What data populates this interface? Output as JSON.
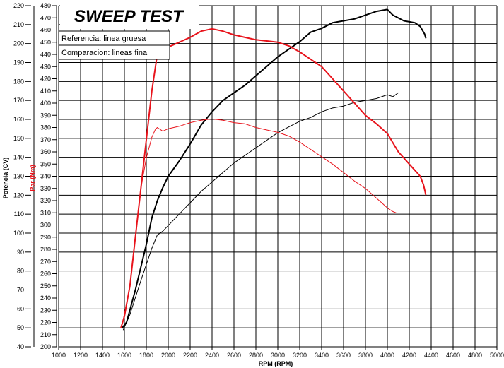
{
  "chart_data": {
    "type": "line",
    "title": "SWEEP TEST",
    "xlabel": "RPM (RPM)",
    "ylabel_left": "Potencia (CV)",
    "ylabel_right": "Par (Nm)",
    "legend": {
      "placement": "top-left",
      "entries": [
        "Referencia: linea gruesa",
        "Comparacion: lineas fina"
      ]
    },
    "xlim": [
      1000,
      5000
    ],
    "x_ticks": [
      1000,
      1200,
      1400,
      1600,
      1800,
      2000,
      2200,
      2400,
      2600,
      2800,
      3000,
      3200,
      3400,
      3600,
      3800,
      4000,
      4200,
      4400,
      4600,
      4800,
      5000
    ],
    "ylim_left": [
      40,
      220
    ],
    "y_left_ticks": [
      40,
      50,
      60,
      70,
      80,
      90,
      100,
      110,
      120,
      130,
      140,
      150,
      160,
      170,
      180,
      190,
      200,
      210,
      220
    ],
    "ylim_right": [
      200,
      480
    ],
    "y_right_ticks": [
      200,
      210,
      220,
      230,
      240,
      250,
      260,
      270,
      280,
      290,
      300,
      310,
      320,
      330,
      340,
      350,
      360,
      370,
      380,
      390,
      400,
      410,
      420,
      430,
      440,
      450,
      460,
      470,
      480
    ],
    "grid": true,
    "colors": {
      "power": "#000000",
      "torque": "#e8141c"
    },
    "series": [
      {
        "axis": "left",
        "color": "#000000",
        "width": "thick",
        "x": [
          1580,
          1620,
          1700,
          1800,
          1850,
          1900,
          1950,
          2000,
          2100,
          2200,
          2300,
          2400,
          2500,
          2600,
          2700,
          2800,
          2900,
          3000,
          3100,
          3200,
          3300,
          3400,
          3500,
          3600,
          3700,
          3800,
          3900,
          4000,
          4050,
          4150,
          4250,
          4300,
          4340,
          4350
        ],
        "y": [
          50,
          53,
          70,
          94,
          108,
          117,
          124,
          130,
          138,
          147,
          157,
          164,
          170,
          174,
          178,
          183,
          188,
          193,
          197,
          201,
          206,
          208,
          211,
          212,
          213,
          215,
          217,
          218,
          215,
          212,
          211,
          209,
          205,
          203
        ]
      },
      {
        "axis": "left",
        "color": "#000000",
        "width": "thin",
        "x": [
          1590,
          1650,
          1750,
          1850,
          1900,
          1950,
          2000,
          2100,
          2200,
          2300,
          2400,
          2500,
          2600,
          2700,
          2800,
          2900,
          3000,
          3100,
          3200,
          3300,
          3400,
          3500,
          3600,
          3700,
          3800,
          3900,
          4000,
          4050,
          4100
        ],
        "y": [
          49,
          57,
          75,
          92,
          99,
          101,
          104,
          110,
          116,
          122,
          127,
          132,
          137,
          141,
          145,
          149,
          153,
          156,
          159,
          161,
          164,
          166,
          167,
          169,
          170,
          171,
          173,
          172,
          174
        ]
      },
      {
        "axis": "right",
        "color": "#e8141c",
        "width": "thick",
        "x": [
          1570,
          1600,
          1650,
          1700,
          1750,
          1800,
          1850,
          1900,
          1950,
          2000,
          2100,
          2200,
          2300,
          2400,
          2500,
          2600,
          2700,
          2800,
          2900,
          3000,
          3100,
          3200,
          3300,
          3400,
          3500,
          3600,
          3700,
          3800,
          3900,
          4000,
          4100,
          4200,
          4250,
          4300,
          4330,
          4350
        ],
        "y": [
          216,
          225,
          250,
          290,
          330,
          370,
          410,
          440,
          446,
          446,
          450,
          454,
          459,
          461,
          459,
          456,
          454,
          452,
          451,
          450,
          447,
          442,
          436,
          430,
          420,
          410,
          400,
          390,
          383,
          375,
          360,
          350,
          345,
          340,
          333,
          325
        ]
      },
      {
        "axis": "right",
        "color": "#e8141c",
        "width": "thin",
        "x": [
          1580,
          1650,
          1700,
          1750,
          1800,
          1850,
          1880,
          1900,
          1950,
          2000,
          2100,
          2200,
          2300,
          2400,
          2500,
          2600,
          2700,
          2800,
          2900,
          3000,
          3100,
          3200,
          3300,
          3400,
          3500,
          3600,
          3700,
          3800,
          3900,
          3950,
          4000,
          4050,
          4080
        ],
        "y": [
          218,
          250,
          290,
          330,
          355,
          372,
          378,
          380,
          377,
          379,
          381,
          384,
          386,
          387,
          386,
          384,
          383,
          380,
          378,
          376,
          373,
          368,
          362,
          356,
          350,
          343,
          336,
          330,
          322,
          318,
          314,
          311,
          310
        ]
      }
    ]
  }
}
